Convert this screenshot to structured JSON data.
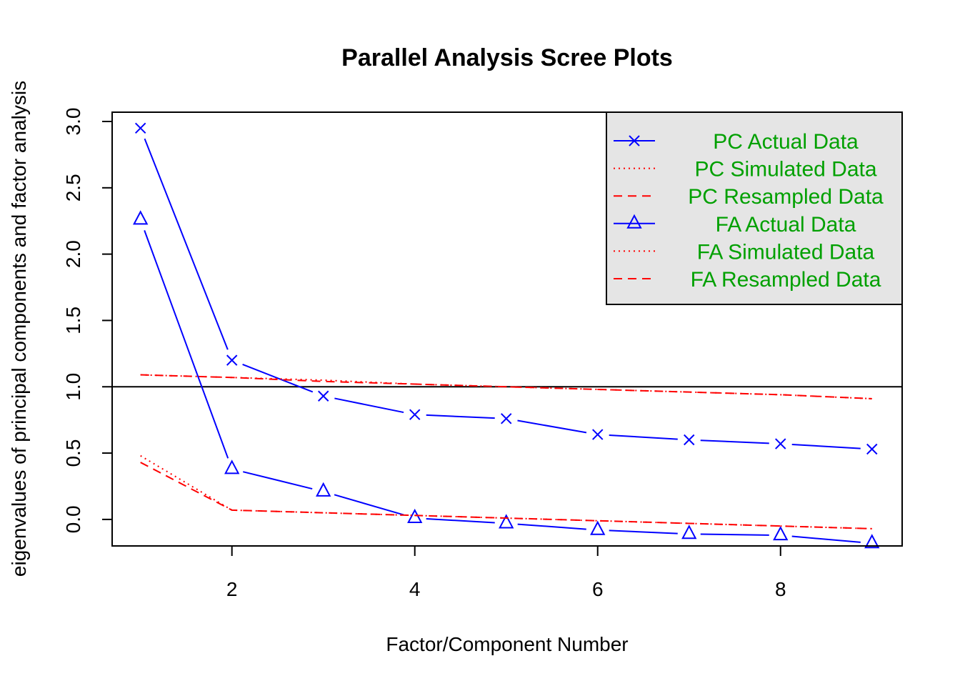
{
  "chart_data": {
    "type": "line",
    "title": "Parallel Analysis Scree Plots",
    "xlabel": "Factor/Component Number",
    "ylabel": "eigenvalues of principal components and factor analysis",
    "xlim": [
      0.69,
      9.33
    ],
    "ylim": [
      -0.2,
      3.07
    ],
    "x": [
      1,
      2,
      3,
      4,
      5,
      6,
      7,
      8,
      9
    ],
    "x_ticks": [
      2,
      4,
      6,
      8
    ],
    "y_ticks": [
      "0.0",
      "0.5",
      "1.0",
      "1.5",
      "2.0",
      "2.5",
      "3.0"
    ],
    "y_tick_values": [
      0,
      0.5,
      1,
      1.5,
      2,
      2.5,
      3
    ],
    "reference_line": 1.0,
    "legend_position": "top-right",
    "series": [
      {
        "name": "PC  Actual Data",
        "color": "#0000ff",
        "style": "solid",
        "marker": "x",
        "values": [
          2.95,
          1.2,
          0.93,
          0.79,
          0.76,
          0.64,
          0.6,
          0.57,
          0.53
        ]
      },
      {
        "name": "PC  Simulated Data",
        "color": "#ff0000",
        "style": "dotted",
        "marker": "none",
        "values": [
          1.09,
          1.07,
          1.05,
          1.02,
          1.0,
          0.98,
          0.96,
          0.94,
          0.91
        ]
      },
      {
        "name": "PC  Resampled Data",
        "color": "#ff0000",
        "style": "dashed",
        "marker": "none",
        "values": [
          1.09,
          1.07,
          1.04,
          1.02,
          1.0,
          0.98,
          0.96,
          0.94,
          0.91
        ]
      },
      {
        "name": "FA  Actual Data",
        "color": "#0000ff",
        "style": "solid",
        "marker": "triangle",
        "values": [
          2.26,
          0.38,
          0.21,
          0.01,
          -0.03,
          -0.08,
          -0.11,
          -0.12,
          -0.18
        ]
      },
      {
        "name": "FA  Simulated Data",
        "color": "#ff0000",
        "style": "dotted",
        "marker": "none",
        "values": [
          0.48,
          0.07,
          0.05,
          0.03,
          0.01,
          -0.01,
          -0.03,
          -0.05,
          -0.07
        ]
      },
      {
        "name": "FA  Resampled Data",
        "color": "#ff0000",
        "style": "dashed",
        "marker": "none",
        "values": [
          0.43,
          0.07,
          0.05,
          0.03,
          0.01,
          -0.01,
          -0.03,
          -0.05,
          -0.07
        ]
      }
    ],
    "legend_text_color": "#00a000",
    "legend_bg": "#e5e5e5"
  }
}
